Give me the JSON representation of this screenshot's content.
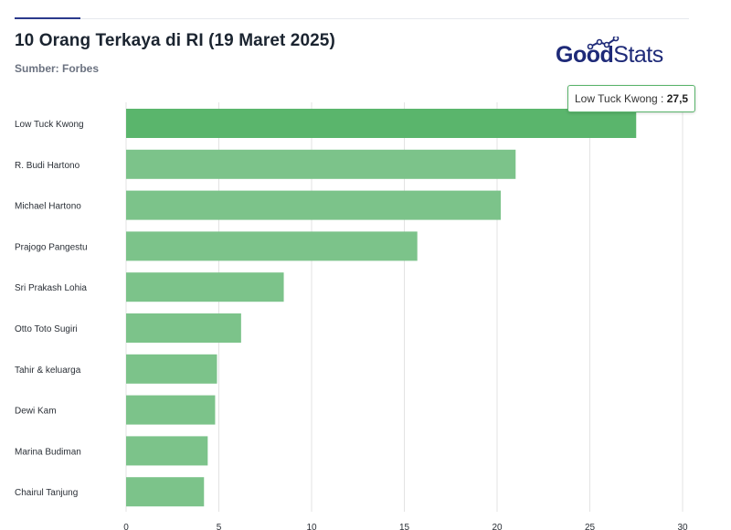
{
  "header": {
    "title": "10 Orang Terkaya di RI (19 Maret 2025)",
    "subtitle": "Sumber: Forbes"
  },
  "logo": {
    "part1": "Good",
    "part2": "Stats"
  },
  "tooltip": {
    "label": "Low Tuck Kwong",
    "separator": " : ",
    "value": "27,5"
  },
  "colors": {
    "bar": "#7cc38a",
    "bar_highlight": "#5ab56c",
    "grid": "#e3e3e3",
    "logo": "#1e2a78"
  },
  "chart_data": {
    "type": "bar",
    "orientation": "horizontal",
    "title": "10 Orang Terkaya di RI (19 Maret 2025)",
    "subtitle": "Sumber: Forbes",
    "categories": [
      "Low Tuck Kwong",
      "R. Budi Hartono",
      "Michael Hartono",
      "Prajogo Pangestu",
      "Sri Prakash Lohia",
      "Otto Toto Sugiri",
      "Tahir & keluarga",
      "Dewi Kam",
      "Marina Budiman",
      "Chairul Tanjung"
    ],
    "values": [
      27.5,
      21.0,
      20.2,
      15.7,
      8.5,
      6.2,
      4.9,
      4.8,
      4.4,
      4.2
    ],
    "xlim": [
      0,
      30
    ],
    "xticks": [
      0,
      5,
      10,
      15,
      20,
      25,
      30
    ],
    "highlighted_index": 0,
    "grid": true
  }
}
